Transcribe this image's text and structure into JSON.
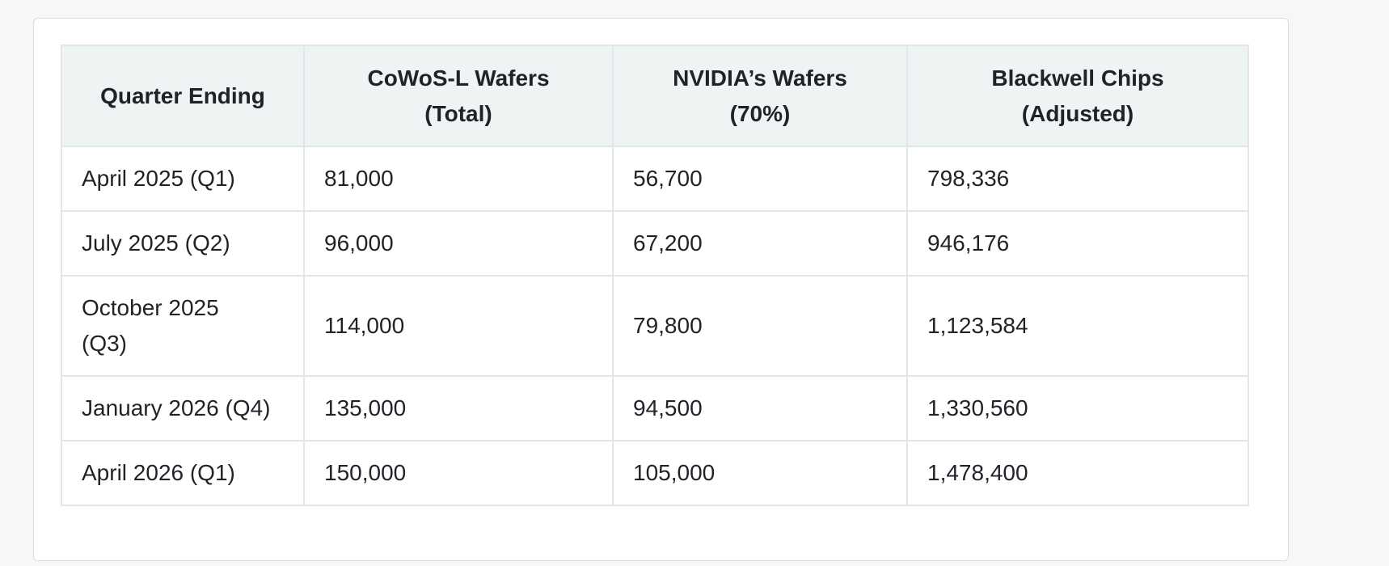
{
  "table": {
    "columns": [
      {
        "line1": "Quarter Ending",
        "line2": ""
      },
      {
        "line1": "CoWoS-L Wafers",
        "line2": "(Total)"
      },
      {
        "line1": "NVIDIA’s Wafers",
        "line2": "(70%)"
      },
      {
        "line1": "Blackwell Chips",
        "line2": "(Adjusted)"
      }
    ],
    "rows": [
      {
        "quarter": "April 2025 (Q1)",
        "quarter_line2": "",
        "cowos": "81,000",
        "nvidia": "56,700",
        "blackwell": "798,336"
      },
      {
        "quarter": "July 2025 (Q2)",
        "quarter_line2": "",
        "cowos": "96,000",
        "nvidia": "67,200",
        "blackwell": "946,176"
      },
      {
        "quarter": "October 2025",
        "quarter_line2": "(Q3)",
        "cowos": "114,000",
        "nvidia": "79,800",
        "blackwell": "1,123,584"
      },
      {
        "quarter": "January 2026 (Q4)",
        "quarter_line2": "",
        "cowos": "135,000",
        "nvidia": "94,500",
        "blackwell": "1,330,560"
      },
      {
        "quarter": "April 2026 (Q1)",
        "quarter_line2": "",
        "cowos": "150,000",
        "nvidia": "105,000",
        "blackwell": "1,478,400"
      }
    ]
  },
  "colors": {
    "header_bg": "#eef3f4",
    "border": "#e1e6e9",
    "text": "#1f2328"
  }
}
